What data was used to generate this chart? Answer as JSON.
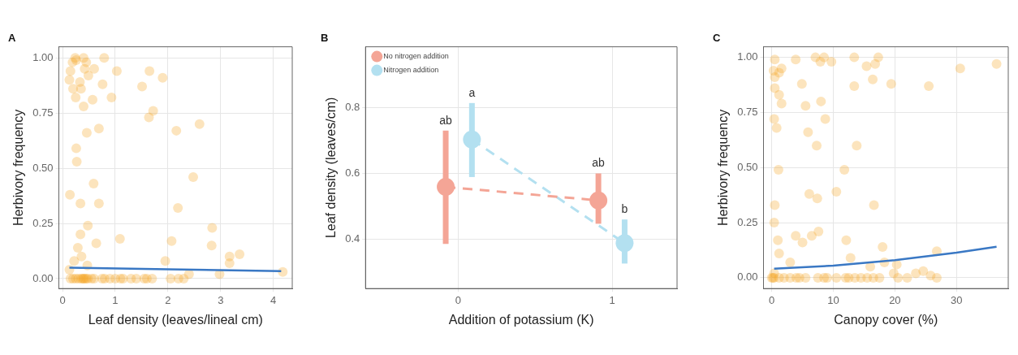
{
  "chart_data": [
    {
      "type": "scatter",
      "title": "A",
      "xlabel": "Leaf density (leaves/lineal cm)",
      "ylabel": "Herbivory frequency",
      "xlim": [
        -0.07,
        4.36
      ],
      "ylim": [
        -0.045,
        1.05
      ],
      "xticks": [
        0,
        1,
        2,
        3,
        4
      ],
      "yticks": [
        {
          "value": 0,
          "label": "0.00"
        },
        0.25,
        {
          "value": 0.5,
          "label": "0.50"
        },
        0.75,
        {
          "value": 1,
          "label": "1.00"
        }
      ],
      "grid": true,
      "marker": "circle",
      "series": [
        {
          "color": "#f5a623",
          "x": [
            0.13,
            0.15,
            0.19,
            0.24,
            0.26,
            0.4,
            0.42,
            0.45,
            0.49,
            0.6,
            0.79,
            1.03,
            0.2,
            0.33,
            0.35,
            0.25,
            0.4,
            0.57,
            0.76,
            0.93,
            1.51,
            1.65,
            1.9,
            1.64,
            1.72,
            0.69,
            0.46,
            2.16,
            2.6,
            0.26,
            0.27,
            0.59,
            2.48,
            0.14,
            0.34,
            0.69,
            2.19,
            0.48,
            0.34,
            0.29,
            0.64,
            1.09,
            2.07,
            2.84,
            2.83,
            1.95,
            3.17,
            3.36,
            3.17,
            0.36,
            0.22,
            0.13,
            0.47,
            2.98,
            2.4,
            4.18,
            0.15,
            0.2,
            0.25,
            0.3,
            0.35,
            0.38,
            0.4,
            0.42,
            0.45,
            0.48,
            0.55,
            0.6,
            0.75,
            0.8,
            0.9,
            1.0,
            1.1,
            1.15,
            1.3,
            1.4,
            1.55,
            1.6,
            1.7,
            2.05,
            2.2,
            2.3
          ],
          "values": [
            0.9,
            0.94,
            0.98,
            1.0,
            0.99,
            1.0,
            0.95,
            0.98,
            0.92,
            0.95,
            1.0,
            0.94,
            0.86,
            0.89,
            0.86,
            0.82,
            0.78,
            0.81,
            0.88,
            0.82,
            0.87,
            0.94,
            0.91,
            0.73,
            0.76,
            0.68,
            0.66,
            0.67,
            0.7,
            0.59,
            0.53,
            0.43,
            0.46,
            0.38,
            0.34,
            0.34,
            0.32,
            0.24,
            0.2,
            0.14,
            0.16,
            0.18,
            0.17,
            0.23,
            0.15,
            0.08,
            0.1,
            0.11,
            0.07,
            0.1,
            0.08,
            0.04,
            0.06,
            0.02,
            0.02,
            0.03,
            0,
            0,
            0,
            0,
            0,
            0,
            0,
            0,
            0,
            0,
            0,
            0,
            0,
            0,
            0,
            0,
            0,
            0,
            0,
            0,
            0,
            0,
            0,
            0,
            0,
            0
          ]
        },
        {
          "type": "line",
          "color": "#3a78c4",
          "marker": "none",
          "x": [
            0.13,
            2,
            4.15
          ],
          "values": [
            0.05,
            0.042,
            0.034
          ]
        }
      ]
    },
    {
      "type": "line",
      "title": "B",
      "xlabel": "Addition of potassium (K)",
      "ylabel": "Leaf density (leaves/cm)",
      "xlim": [
        -0.6,
        1.42
      ],
      "ylim": [
        0.25,
        0.985
      ],
      "xticks": [
        0,
        1
      ],
      "yticks": [
        0.4,
        0.6,
        0.8
      ],
      "grid": true,
      "legend": "top left",
      "marker": "circle",
      "line_style": "dashed",
      "series": [
        {
          "name": "No nitrogen addition",
          "color": "#f4a596",
          "x": [
            -0.08,
            0.91
          ],
          "values": [
            0.559,
            0.518
          ],
          "errors": [
            [
              0.386,
              0.73
            ],
            [
              0.447,
              0.6
            ]
          ]
        },
        {
          "name": "Nitrogen addition",
          "color": "#b3e0f0",
          "x": [
            0.09,
            1.08
          ],
          "values": [
            0.703,
            0.388
          ],
          "errors": [
            [
              0.589,
              0.814
            ],
            [
              0.326,
              0.46
            ]
          ]
        }
      ],
      "annotations": [
        "ab",
        "a",
        "ab",
        "b"
      ]
    },
    {
      "type": "scatter",
      "title": "C",
      "xlabel": "Canopy cover (%)",
      "ylabel": "Herbivory frequency",
      "xlim": [
        -1.33,
        38.4
      ],
      "ylim": [
        -0.049,
        1.048
      ],
      "xticks": [
        0,
        10,
        20,
        30
      ],
      "yticks": [
        {
          "value": 0,
          "label": "0.00"
        },
        0.25,
        {
          "value": 0.5,
          "label": "0.50"
        },
        0.75,
        {
          "value": 1,
          "label": "1.00"
        }
      ],
      "grid": true,
      "marker": "circle",
      "series": [
        {
          "color": "#f5a623",
          "x": [
            0.5,
            0.3,
            0.5,
            0.5,
            1.2,
            1.6,
            1.2,
            1.6,
            0.4,
            0.8,
            3.9,
            4.9,
            5.5,
            5.9,
            7.1,
            7.9,
            8.5,
            9.7,
            8.0,
            8.7,
            7.3,
            13.4,
            13.4,
            13.8,
            15.4,
            16.4,
            16.8,
            17.3,
            19.4,
            25.5,
            30.6,
            36.5,
            1.1,
            11.8,
            6.1,
            7.4,
            10.5,
            16.6,
            0.5,
            0.4,
            3.9,
            6.5,
            7.6,
            5.0,
            1.0,
            12.1,
            18.0,
            26.8,
            12.8,
            18.3,
            20.3,
            16.0,
            1.2,
            3.0,
            19.8,
            23.4,
            24.6,
            25.8,
            0.4,
            0,
            0.2,
            0.4,
            1.2,
            2,
            3,
            4,
            4.5,
            5.5,
            7.5,
            8.5,
            9,
            10.5,
            12,
            12.5,
            13.5,
            14.5,
            15.5,
            16.5,
            17.5,
            20.5,
            22,
            26.8
          ],
          "values": [
            0.99,
            0.94,
            0.91,
            0.86,
            0.93,
            0.95,
            0.83,
            0.79,
            0.72,
            0.68,
            0.99,
            0.88,
            0.78,
            0.66,
            1.0,
            0.98,
            1.0,
            0.98,
            0.8,
            0.72,
            0.6,
            1.0,
            0.87,
            0.6,
            0.96,
            0.9,
            0.97,
            1.0,
            0.88,
            0.87,
            0.95,
            0.97,
            0.49,
            0.49,
            0.38,
            0.36,
            0.39,
            0.33,
            0.33,
            0.25,
            0.19,
            0.19,
            0.21,
            0.16,
            0.17,
            0.17,
            0.14,
            0.12,
            0.09,
            0.07,
            0.06,
            0.05,
            0.11,
            0.07,
            0.02,
            0.02,
            0.03,
            0.01,
            0.02,
            0,
            0,
            0,
            0,
            0,
            0,
            0,
            0,
            0,
            0,
            0,
            0,
            0,
            0,
            0,
            0,
            0,
            0,
            0,
            0,
            0,
            0,
            0
          ]
        },
        {
          "type": "line",
          "color": "#3a78c4",
          "marker": "none",
          "x": [
            0.4,
            10,
            20,
            30,
            36.5
          ],
          "values": [
            0.041,
            0.055,
            0.08,
            0.114,
            0.141
          ]
        }
      ]
    }
  ]
}
